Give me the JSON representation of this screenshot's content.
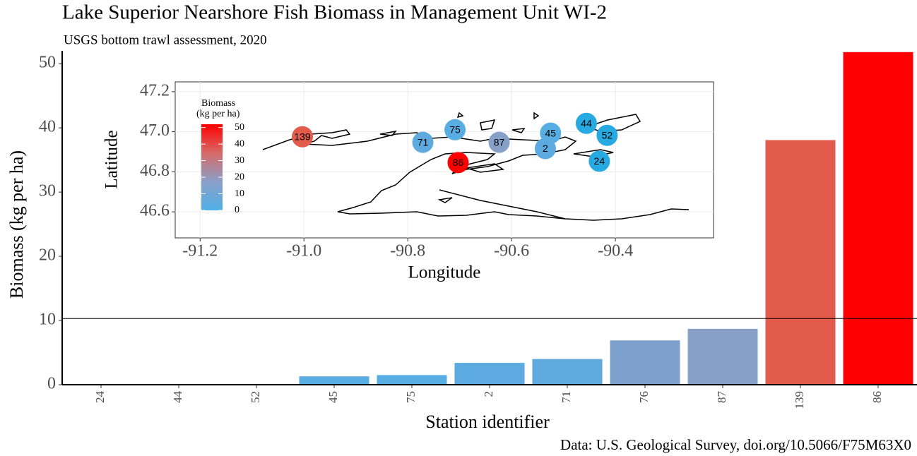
{
  "chart_data": [
    {
      "type": "bar",
      "title": "Lake Superior Nearshore Fish Biomass in Management Unit WI-2",
      "subtitle": "USGS bottom trawl assessment, 2020",
      "caption": "Data: U.S. Geological Survey, doi.org/10.5066/F75M63X0",
      "x_label": "Station identifier",
      "y_label": "Biomass (kg per ha)",
      "categories": [
        "24",
        "44",
        "52",
        "45",
        "75",
        "2",
        "71",
        "76",
        "87",
        "139",
        "86"
      ],
      "values": [
        0,
        0,
        0,
        1.3,
        1.5,
        3.4,
        4.0,
        6.9,
        8.7,
        38.1,
        51.8
      ],
      "colors": [
        "#56b0e6",
        "#56b0e6",
        "#56b0e6",
        "#58aee3",
        "#58aee3",
        "#5caae0",
        "#5eaadf",
        "#7ea0cc",
        "#86a0c8",
        "#e35b4b",
        "#ff0000"
      ],
      "ylim": [
        0,
        52
      ],
      "yticks": [
        0,
        10,
        20,
        30,
        40,
        50
      ],
      "hline": 10.3
    },
    {
      "type": "scatter",
      "x_label": "Longitude",
      "y_label": "Latitude",
      "labels": [
        "139",
        "75",
        "71",
        "87",
        "86",
        "45",
        "2",
        "44",
        "52",
        "24"
      ],
      "x": [
        -91.003,
        -90.709,
        -90.771,
        -90.624,
        -90.703,
        -90.525,
        -90.535,
        -90.456,
        -90.416,
        -90.431
      ],
      "y": [
        46.975,
        47.01,
        46.947,
        46.947,
        46.846,
        46.993,
        46.916,
        47.042,
        46.982,
        46.853
      ],
      "colors": [
        "#e35b4b",
        "#58aee3",
        "#5eaadf",
        "#86a0c8",
        "#ff0000",
        "#58aee3",
        "#5caae0",
        "#27aae1",
        "#27aae1",
        "#27aae1"
      ],
      "xlim": [
        -91.248,
        -90.211
      ],
      "ylim": [
        46.47,
        47.249
      ],
      "xticks": [
        -91.2,
        {
          "value": -91,
          "label": "-91.0"
        },
        -90.8,
        -90.6,
        -90.4
      ],
      "yticks": [
        46.6,
        46.8,
        {
          "value": 47,
          "label": "47.0"
        },
        47.2
      ],
      "grid": true,
      "legend": {
        "title": "Biomass",
        "subtitle": "(kg per ha)",
        "lim": [
          0,
          52
        ],
        "ticks": [
          0,
          10,
          20,
          30,
          40,
          50
        ],
        "colors": [
          "#4fb0e8",
          "#8a9fc9",
          "#d66a67",
          "#ff0000"
        ]
      }
    }
  ]
}
